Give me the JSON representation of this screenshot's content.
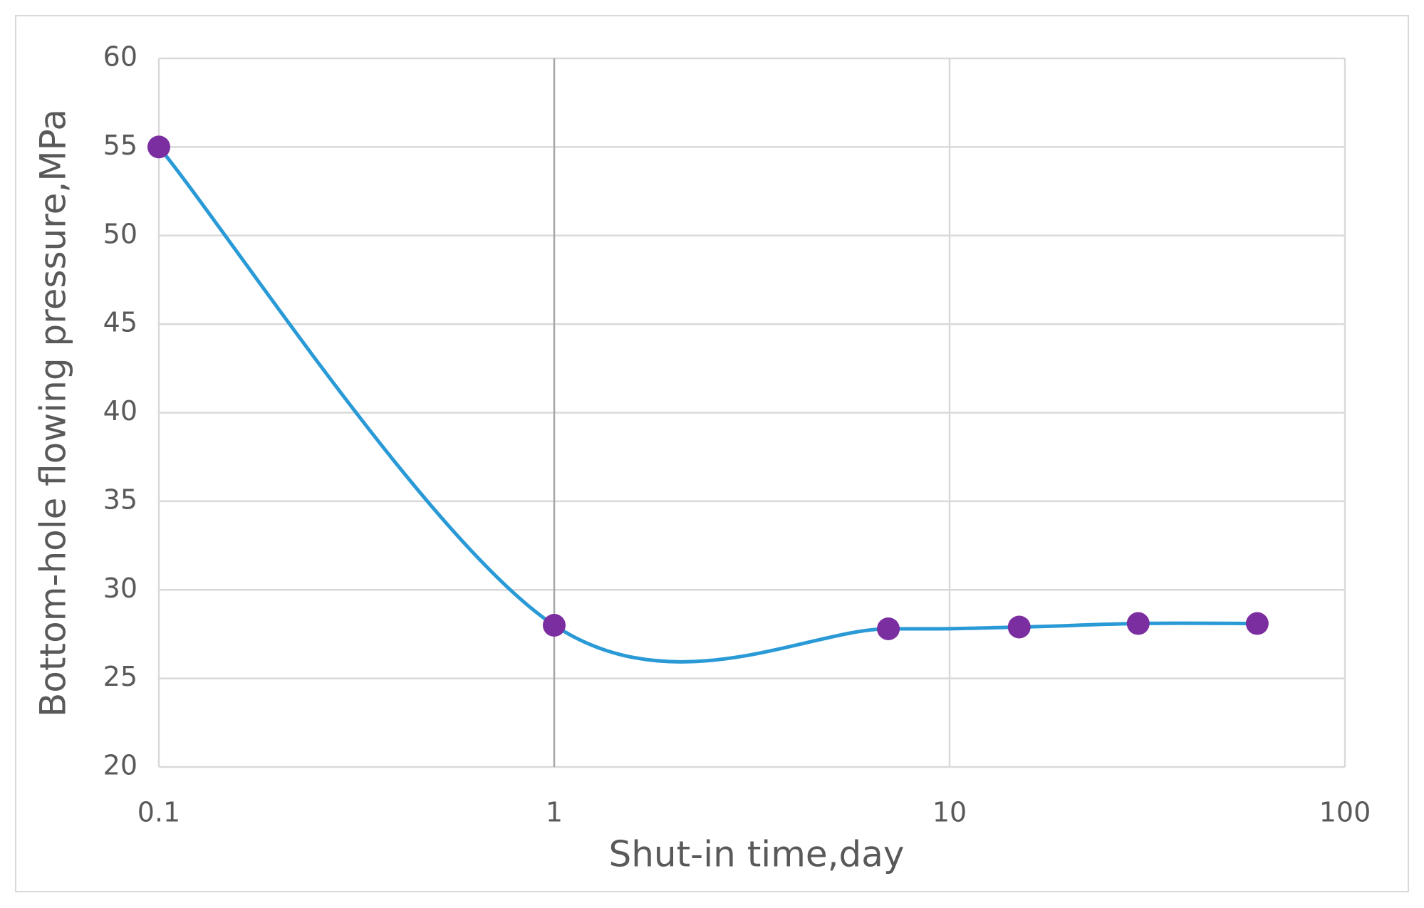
{
  "chart_data": {
    "type": "line",
    "x_label": "Shut-in time,day",
    "y_label": "Bottom-hole flowing pressure,MPa",
    "x": [
      0.1,
      1,
      7,
      15,
      30,
      60
    ],
    "series": [
      {
        "color": "#2a9ad6",
        "marker_color": "#7b2ea0",
        "values": [
          55,
          28,
          27.8,
          27.9,
          28.1,
          28.1
        ]
      }
    ],
    "xscale": "log",
    "xlim": [
      0.1,
      100
    ],
    "xticks": [
      0.1,
      1,
      10,
      100
    ],
    "ylim": [
      20,
      60
    ],
    "yticks": [
      20,
      25,
      30,
      35,
      40,
      45,
      50,
      55,
      60
    ],
    "grid": true,
    "smooth": true
  }
}
